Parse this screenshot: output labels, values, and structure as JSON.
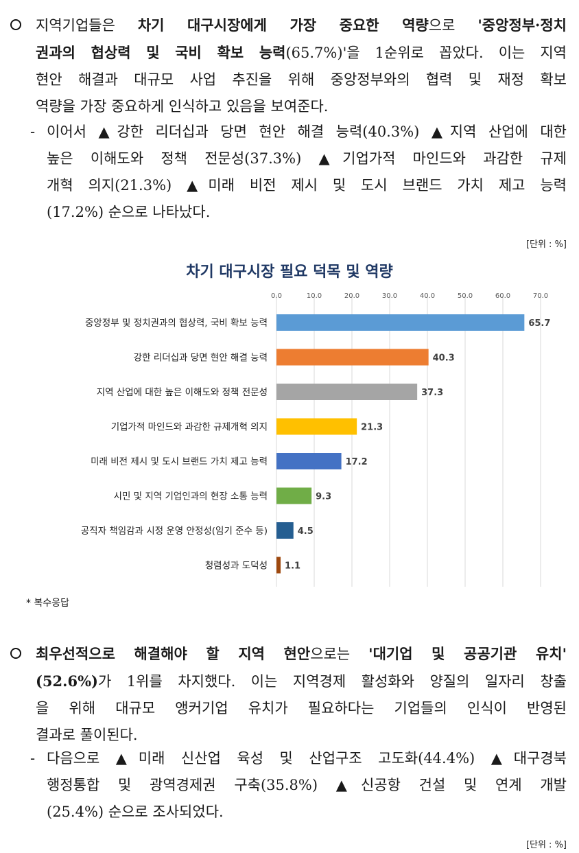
{
  "section1": {
    "lines": [
      [
        "지역기업들은 ",
        "차기 대구시장에게 가장 중요한 역량",
        "으로 ",
        "'중앙정부·정치"
      ],
      [
        "권과의 협상력 및 국비 확보 능력",
        "(65.7%)'을 1순위로 꼽았다. 이는 지역"
      ],
      [
        "현안 해결과 대규모 사업 추진을 위해 중앙정부와의 협력 및 재정 확보"
      ],
      [
        "역량을 가장 중요하게 인식하고 있음을 보여준다."
      ]
    ],
    "sub_dash": "-",
    "sub_lines": [
      "이어서 ▲강한 리더십과 당면 현안 해결 능력(40.3%) ▲지역 산업에 대한",
      "높은 이해도와 정책 전문성(37.3%) ▲기업가적 마인드와 과감한 규제",
      "개혁 의지(21.3%) ▲미래 비전 제시 및 도시 브랜드 가치 제고 능력",
      "(17.2%) 순으로 나타났다."
    ]
  },
  "unit_label_1": "[단위 : %]",
  "chart_data": {
    "type": "bar",
    "orientation": "horizontal",
    "title": "차기 대구시장 필요 덕목 및 역량",
    "xlim": [
      0,
      70
    ],
    "ticks": [
      "0.0",
      "10.0",
      "20.0",
      "30.0",
      "40.0",
      "50.0",
      "60.0",
      "70.0"
    ],
    "tick_values": [
      0,
      10,
      20,
      30,
      40,
      50,
      60,
      70
    ],
    "grid": true,
    "categories": [
      "중앙정부 및 정치권과의 협상력, 국비 확보 능력",
      "강한 리더십과 당면 현안 해결 능력",
      "지역 산업에 대한 높은 이해도와 정책 전문성",
      "기업가적 마인드와 과감한 규제개혁 의지",
      "미래 비전 제시 및 도시 브랜드 가치 제고 능력",
      "시민 및 지역 기업인과의 현장 소통 능력",
      "공직자 책임감과 시정 운영 안정성(임기 준수 등)",
      "청렴성과 도덕성"
    ],
    "values": [
      65.7,
      40.3,
      37.3,
      21.3,
      17.2,
      9.3,
      4.5,
      1.1
    ],
    "labels": [
      "65.7",
      "40.3",
      "37.3",
      "21.3",
      "17.2",
      "9.3",
      "4.5",
      "1.1"
    ],
    "colors": [
      "#5b9bd5",
      "#ed7d31",
      "#a5a5a5",
      "#ffc000",
      "#4472c4",
      "#70ad47",
      "#255e91",
      "#9e480e"
    ]
  },
  "note": "*  복수응답",
  "section2": {
    "lines": [
      [
        "최우선적으로 해결해야 할 지역 현안",
        "으로는 ",
        "'대기업 및 공공기관 유치'"
      ],
      [
        "(52.6%)",
        "가 1위를 차지했다. 이는 지역경제 활성화와 양질의 일자리 창출"
      ],
      [
        "을 위해 대규모 앵커기업 유치가 필요하다는 기업들의 인식이 반영된"
      ],
      [
        "결과로 풀이된다."
      ]
    ],
    "sub_dash": "-",
    "sub_lines": [
      "다음으로 ▲미래 신산업 육성 및 산업구조 고도화(44.4%) ▲대구경북",
      "행정통합 및 광역경제권 구축(35.8%) ▲신공항 건설 및 연계 개발",
      "(25.4%) 순으로 조사되었다."
    ]
  },
  "unit_label_2": "[단위 : %]"
}
